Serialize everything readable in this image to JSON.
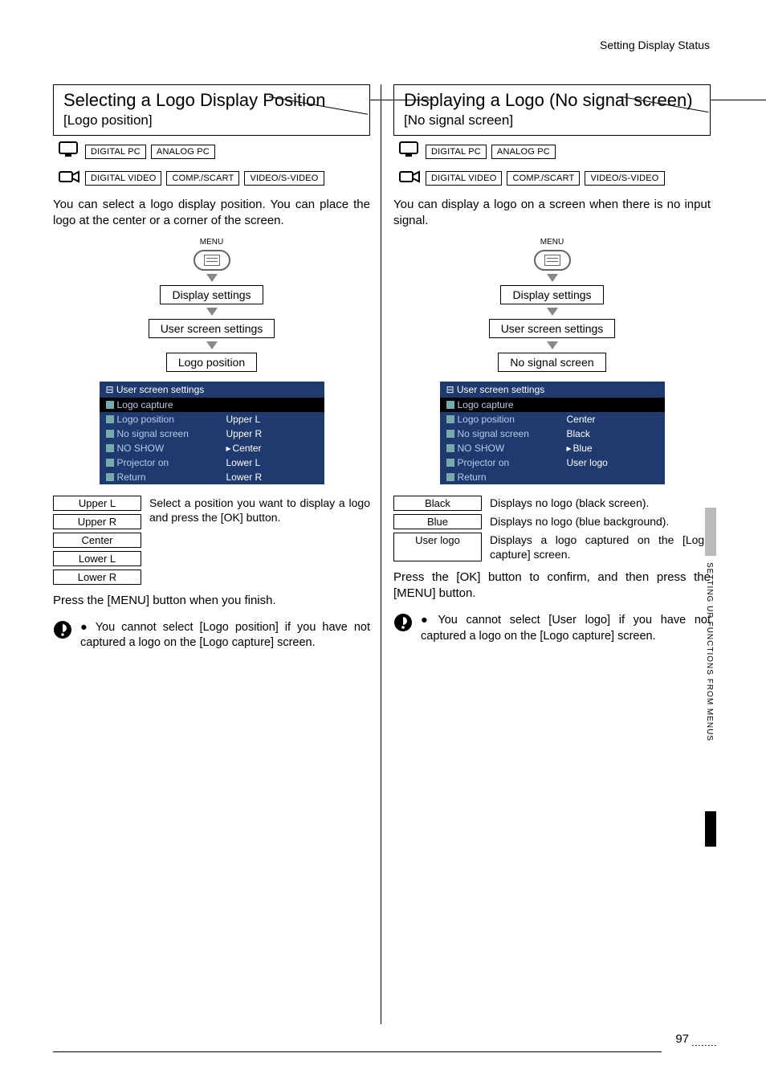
{
  "header": "Setting Display Status",
  "sideText": "SETTING UP FUNCTIONS FROM MENUS",
  "pageNumber": "97",
  "menuLabel": "MENU",
  "modes": {
    "row1": [
      "DIGITAL PC",
      "ANALOG PC"
    ],
    "row2": [
      "DIGITAL VIDEO",
      "COMP./SCART",
      "VIDEO/S-VIDEO"
    ]
  },
  "left": {
    "title": "Selecting a Logo Display Position",
    "subtitle": "[Logo position]",
    "body": "You can select a logo display position. You can place the logo at the center or a corner of the screen.",
    "nav": [
      "Display settings",
      "User screen settings",
      "Logo position"
    ],
    "osd": {
      "header": "User screen settings",
      "rows": [
        {
          "k": "Logo capture",
          "v": "",
          "sel": true
        },
        {
          "k": "Logo position",
          "v": "Upper L"
        },
        {
          "k": "No signal screen",
          "v": "Upper R"
        },
        {
          "k": "NO SHOW",
          "v": "Center",
          "cur": true
        },
        {
          "k": "Projector on",
          "v": "Lower L"
        },
        {
          "k": "Return",
          "v": "Lower R"
        }
      ]
    },
    "options": [
      {
        "k": "Upper L",
        "d": "Select a position you want to display a logo and press the [OK] button."
      },
      {
        "k": "Upper R",
        "d": ""
      },
      {
        "k": "Center",
        "d": ""
      },
      {
        "k": "Lower L",
        "d": ""
      },
      {
        "k": "Lower R",
        "d": ""
      }
    ],
    "press": "Press the [MENU] button when you finish.",
    "note": "You cannot select [Logo position] if you have not captured a logo on the [Logo capture] screen."
  },
  "right": {
    "title": "Displaying a Logo (No signal screen)",
    "subtitle": "[No signal screen]",
    "body": "You can display a logo on a screen when there is no input signal.",
    "nav": [
      "Display settings",
      "User screen settings",
      "No signal screen"
    ],
    "osd": {
      "header": "User screen settings",
      "rows": [
        {
          "k": "Logo capture",
          "v": "",
          "sel": true
        },
        {
          "k": "Logo position",
          "v": "Center"
        },
        {
          "k": "No signal screen",
          "v": "Black"
        },
        {
          "k": "NO SHOW",
          "v": "Blue",
          "cur": true
        },
        {
          "k": "Projector on",
          "v": "User logo"
        },
        {
          "k": "Return",
          "v": ""
        }
      ]
    },
    "options": [
      {
        "k": "Black",
        "d": "Displays no logo (black screen)."
      },
      {
        "k": "Blue",
        "d": "Displays no logo (blue background)."
      },
      {
        "k": "User logo",
        "d": "Displays a logo captured on the [Logo capture] screen."
      }
    ],
    "press": "Press the [OK] button to confirm, and then press the [MENU] button.",
    "note": "You cannot select [User logo] if you have not captured a logo on the [Logo capture] screen."
  }
}
